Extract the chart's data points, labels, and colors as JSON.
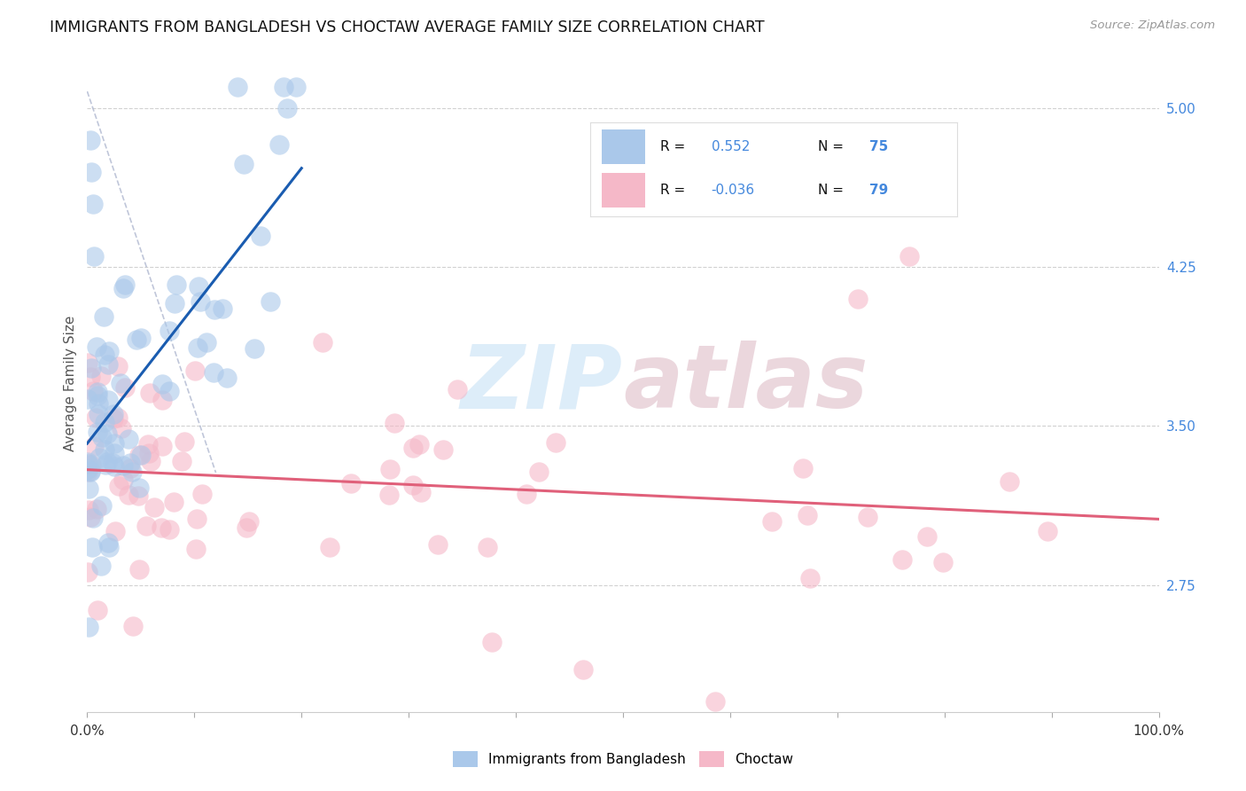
{
  "title": "IMMIGRANTS FROM BANGLADESH VS CHOCTAW AVERAGE FAMILY SIZE CORRELATION CHART",
  "source": "Source: ZipAtlas.com",
  "ylabel": "Average Family Size",
  "right_yticks": [
    2.75,
    3.5,
    4.25,
    5.0
  ],
  "xlim": [
    0,
    100
  ],
  "ylim": [
    2.15,
    5.25
  ],
  "background_color": "#ffffff",
  "grid_color": "#cccccc",
  "series1_color": "#aac8ea",
  "series2_color": "#f5b8c8",
  "line1_color": "#1a5cb0",
  "line2_color": "#e0607a",
  "ref_line_color": "#b0b8d0",
  "watermark_color": "#d8eaf8",
  "title_color": "#111111",
  "source_color": "#999999",
  "ylabel_color": "#555555",
  "right_tick_color": "#4488dd",
  "legend_text_color": "#111111",
  "legend_value_color": "#4488dd",
  "bottom_legend_color_1": "#aac8ea",
  "bottom_legend_color_2": "#f5b8c8",
  "r1": 0.552,
  "n1": 75,
  "r2": -0.036,
  "n2": 79,
  "seed": 12345
}
